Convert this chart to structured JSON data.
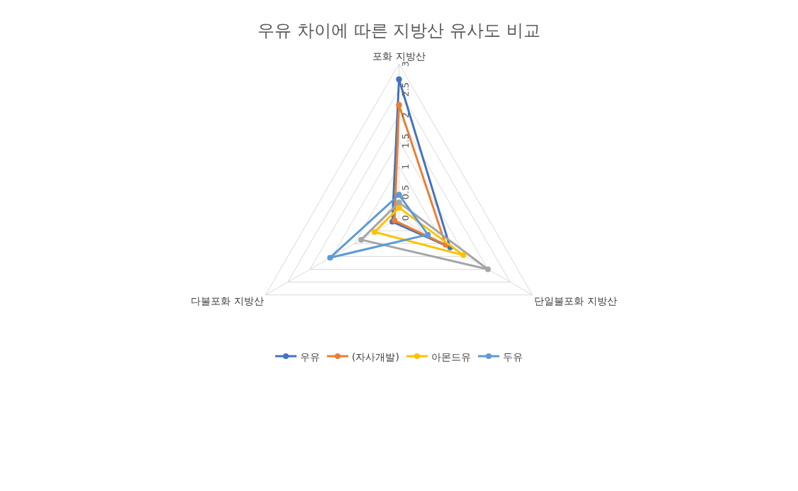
{
  "chart_data": {
    "type": "radar",
    "title": "우유 차이에 따른 지방산 유사도 비교",
    "categories": [
      "포화 지방산",
      "단일불포화 지방산",
      "다불포화 지방산"
    ],
    "series": [
      {
        "name": "우유",
        "color": "#4472c4",
        "values": [
          2.7,
          1.15,
          0.15
        ]
      },
      {
        "name": "(자사개발)",
        "color": "#ed7d31",
        "values": [
          2.2,
          1.05,
          0.1
        ]
      },
      {
        "color": "#a5a5a5",
        "values": [
          0.3,
          2.0,
          0.85
        ]
      },
      {
        "name": "아몬드유",
        "color": "#ffc000",
        "values": [
          0.2,
          1.45,
          0.55
        ]
      },
      {
        "name": "두유",
        "color": "#5b9bd5",
        "values": [
          0.45,
          0.65,
          1.55
        ]
      }
    ],
    "ylim": [
      0,
      3
    ],
    "yticks": [
      0,
      0.5,
      1,
      1.5,
      2,
      2.5,
      3
    ],
    "grid": true,
    "legend": "bottom",
    "marker": "circle",
    "line_style": "solid"
  }
}
